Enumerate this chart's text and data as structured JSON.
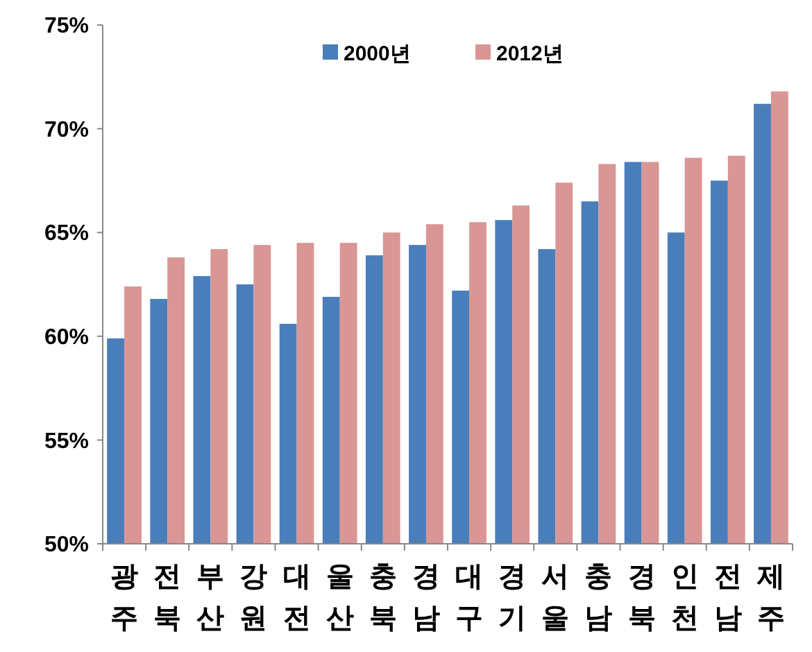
{
  "chart_data": {
    "type": "bar",
    "categories": [
      "광주",
      "전북",
      "부산",
      "강원",
      "대전",
      "울산",
      "충북",
      "경남",
      "대구",
      "경기",
      "서울",
      "충남",
      "경북",
      "인천",
      "전남",
      "제주"
    ],
    "series": [
      {
        "name": "2000년",
        "color": "#4a7ebb",
        "values": [
          59.9,
          61.8,
          62.9,
          62.5,
          60.6,
          61.9,
          63.9,
          64.4,
          62.2,
          65.6,
          64.2,
          66.5,
          68.4,
          65.0,
          67.5,
          71.2
        ]
      },
      {
        "name": "2012년",
        "color": "#d99694",
        "values": [
          62.4,
          63.8,
          64.2,
          64.4,
          64.5,
          64.5,
          65.0,
          65.4,
          65.5,
          66.3,
          67.4,
          68.3,
          68.4,
          68.6,
          68.7,
          71.8
        ]
      }
    ],
    "ylim": [
      50,
      75
    ],
    "yticks": [
      {
        "value": 50,
        "label": "50%"
      },
      {
        "value": 55,
        "label": "55%"
      },
      {
        "value": 60,
        "label": "60%"
      },
      {
        "value": 65,
        "label": "65%"
      },
      {
        "value": 70,
        "label": "70%"
      },
      {
        "value": 75,
        "label": "75%"
      }
    ],
    "legend": "top",
    "grid": false
  }
}
